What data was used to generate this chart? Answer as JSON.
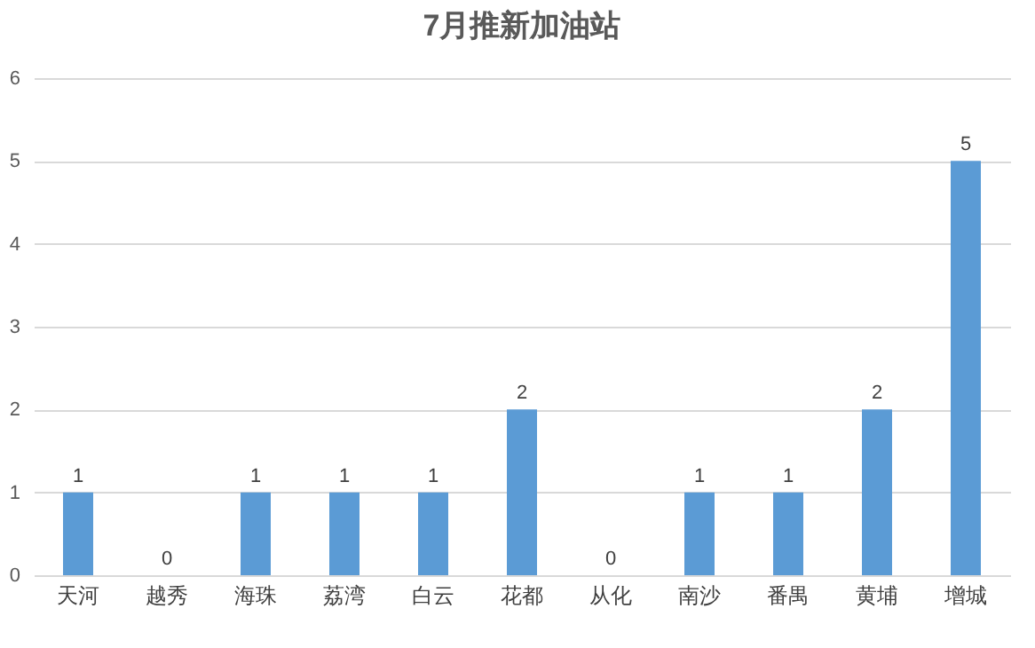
{
  "chart_data": {
    "type": "bar",
    "title": "7月推新加油站",
    "categories": [
      "天河",
      "越秀",
      "海珠",
      "荔湾",
      "白云",
      "花都",
      "从化",
      "南沙",
      "番禺",
      "黄埔",
      "增城"
    ],
    "values": [
      1,
      0,
      1,
      1,
      1,
      2,
      0,
      1,
      1,
      2,
      5
    ],
    "color": "#5b9bd5",
    "ylim": [
      0,
      6
    ],
    "yticks": [
      0,
      1,
      2,
      3,
      4,
      5,
      6
    ],
    "grid": "y",
    "data_labels": true
  }
}
